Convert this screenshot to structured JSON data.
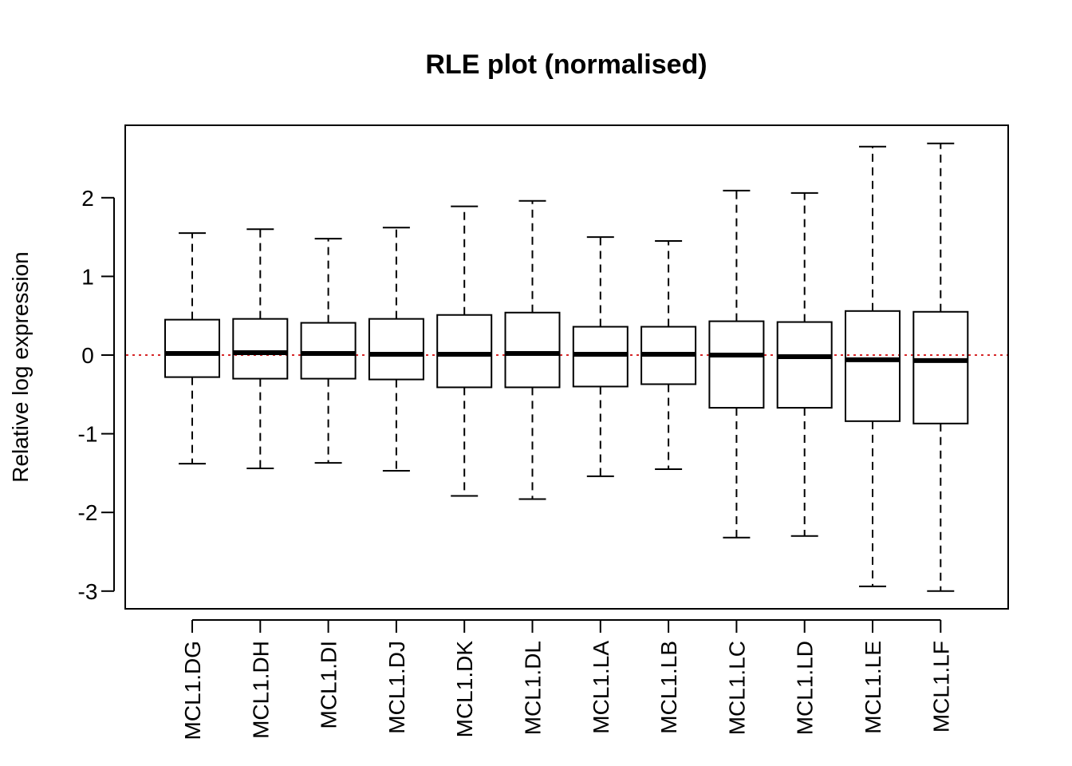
{
  "chart_data": {
    "type": "box",
    "title": "RLE plot (normalised)",
    "xlabel": "",
    "ylabel": "Relative log expression",
    "ylim": [
      -3.2,
      2.95
    ],
    "yticks": [
      -3,
      -2,
      -1,
      0,
      1,
      2
    ],
    "reference_line": {
      "y": 0,
      "color": "#d62728",
      "style": "dotted"
    },
    "categories": [
      "MCL1.DG",
      "MCL1.DH",
      "MCL1.DI",
      "MCL1.DJ",
      "MCL1.DK",
      "MCL1.DL",
      "MCL1.LA",
      "MCL1.LB",
      "MCL1.LC",
      "MCL1.LD",
      "MCL1.LE",
      "MCL1.LF"
    ],
    "boxes": [
      {
        "whisker_low": -1.38,
        "q1": -0.28,
        "median": 0.02,
        "q3": 0.45,
        "whisker_high": 1.55
      },
      {
        "whisker_low": -1.44,
        "q1": -0.3,
        "median": 0.03,
        "q3": 0.46,
        "whisker_high": 1.6
      },
      {
        "whisker_low": -1.37,
        "q1": -0.3,
        "median": 0.02,
        "q3": 0.41,
        "whisker_high": 1.48
      },
      {
        "whisker_low": -1.47,
        "q1": -0.31,
        "median": 0.01,
        "q3": 0.46,
        "whisker_high": 1.62
      },
      {
        "whisker_low": -1.79,
        "q1": -0.41,
        "median": 0.01,
        "q3": 0.51,
        "whisker_high": 1.89
      },
      {
        "whisker_low": -1.83,
        "q1": -0.41,
        "median": 0.02,
        "q3": 0.54,
        "whisker_high": 1.96
      },
      {
        "whisker_low": -1.54,
        "q1": -0.4,
        "median": 0.01,
        "q3": 0.36,
        "whisker_high": 1.5
      },
      {
        "whisker_low": -1.45,
        "q1": -0.37,
        "median": 0.01,
        "q3": 0.36,
        "whisker_high": 1.45
      },
      {
        "whisker_low": -2.32,
        "q1": -0.67,
        "median": 0.0,
        "q3": 0.43,
        "whisker_high": 2.09
      },
      {
        "whisker_low": -2.3,
        "q1": -0.67,
        "median": -0.02,
        "q3": 0.42,
        "whisker_high": 2.06
      },
      {
        "whisker_low": -2.94,
        "q1": -0.84,
        "median": -0.06,
        "q3": 0.56,
        "whisker_high": 2.65
      },
      {
        "whisker_low": -3.0,
        "q1": -0.87,
        "median": -0.07,
        "q3": 0.55,
        "whisker_high": 2.69
      }
    ],
    "grid": false,
    "legend": "none"
  }
}
